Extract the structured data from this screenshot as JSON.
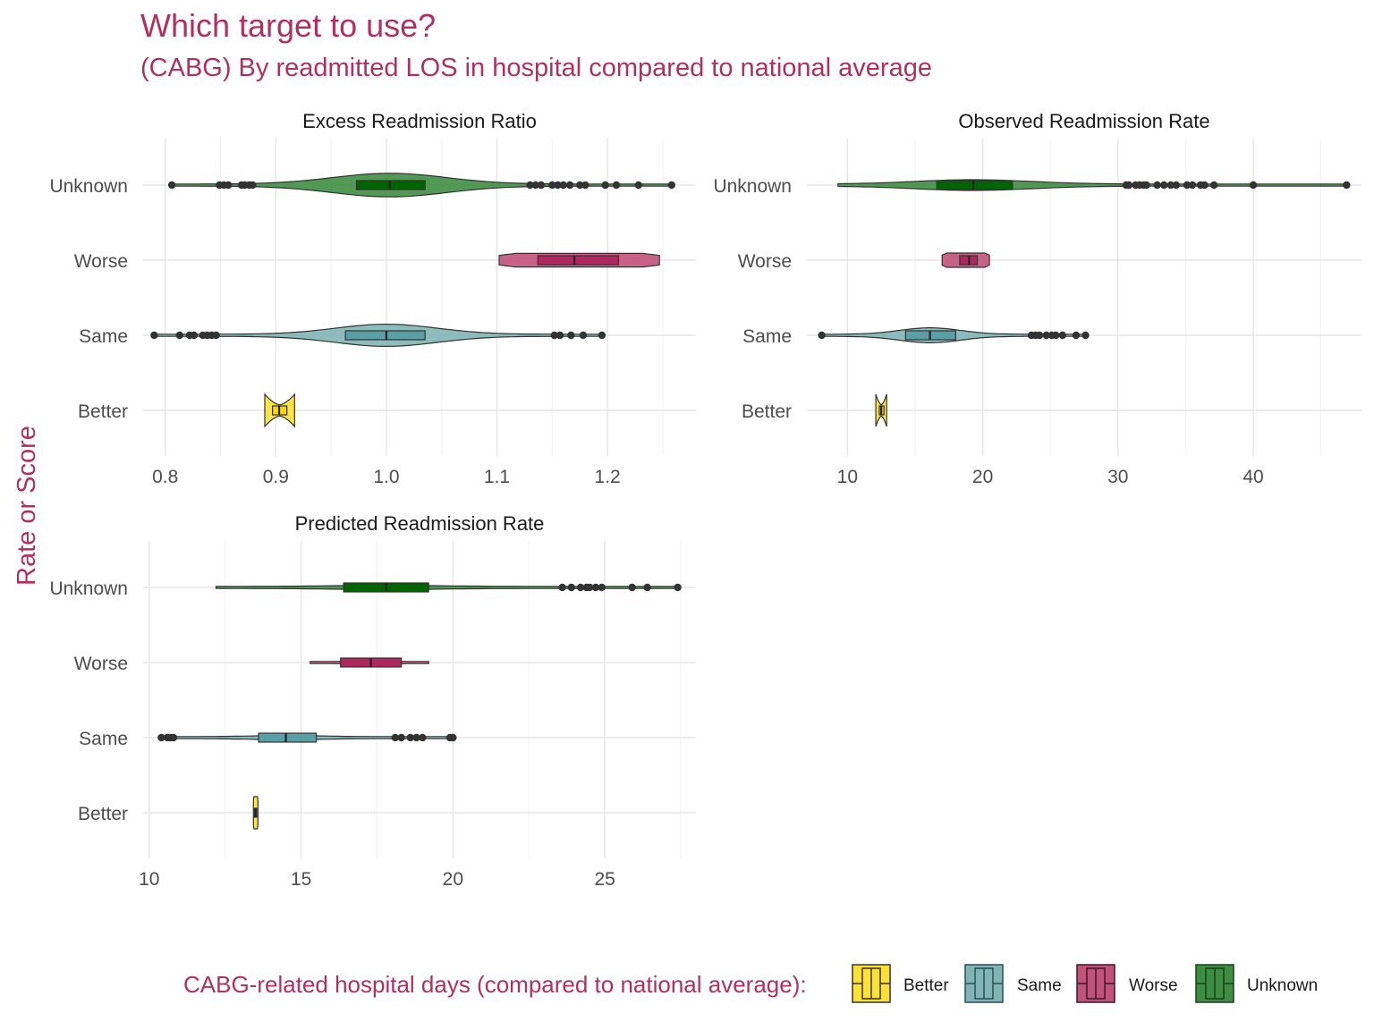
{
  "title": "Which target to use?",
  "subtitle": "(CABG) By readmitted LOS in hospital compared to national average",
  "y_axis_label": "Rate or Score",
  "legend": {
    "title": "CABG-related hospital days (compared to national average):",
    "items": [
      {
        "label": "Better",
        "fill": "#FFE135",
        "stroke": "#333333"
      },
      {
        "label": "Same",
        "fill": "#7FB5B5",
        "stroke": "#2d4f57"
      },
      {
        "label": "Worse",
        "fill": "#C2527A",
        "stroke": "#3a1a26"
      },
      {
        "label": "Unknown",
        "fill": "#3E8E41",
        "stroke": "#1e3d1e"
      }
    ]
  },
  "colors": {
    "Better": {
      "violin": "#FFE135",
      "box": "#FFD700"
    },
    "Same": {
      "violin": "#7FB5B5",
      "box": "#5A9EA6"
    },
    "Worse": {
      "violin": "#C2527A",
      "box": "#B0265E"
    },
    "Unknown": {
      "violin": "#3E8E41",
      "box": "#006400"
    }
  },
  "chart_data": [
    {
      "type": "violin-box",
      "title": "Excess Readmission Ratio",
      "categories": [
        "Unknown",
        "Worse",
        "Same",
        "Better"
      ],
      "xlim": [
        0.78,
        1.28
      ],
      "x_ticks": [
        0.8,
        0.9,
        1.0,
        1.1,
        1.2
      ],
      "x_tick_labels": [
        "0.8",
        "0.9",
        "1.0",
        "1.1",
        "1.2"
      ],
      "series": [
        {
          "name": "Unknown",
          "violin_range": [
            0.806,
            1.258
          ],
          "q1": 0.973,
          "median": 1.003,
          "q3": 1.035,
          "violin_width": 0.3,
          "width_shape": "peak",
          "outliers": [
            0.806,
            0.849,
            0.853,
            0.857,
            0.869,
            0.872,
            0.876,
            0.879,
            1.13,
            1.135,
            1.14,
            1.15,
            1.155,
            1.16,
            1.166,
            1.175,
            1.18,
            1.198,
            1.208,
            1.228,
            1.258
          ]
        },
        {
          "name": "Worse",
          "violin_range": [
            1.102,
            1.247
          ],
          "q1": 1.137,
          "median": 1.17,
          "q3": 1.21,
          "violin_width": 0.19,
          "width_shape": "flat",
          "outliers": []
        },
        {
          "name": "Same",
          "violin_range": [
            0.79,
            1.195
          ],
          "q1": 0.963,
          "median": 1.0,
          "q3": 1.035,
          "violin_width": 0.28,
          "width_shape": "peak",
          "outliers": [
            0.79,
            0.813,
            0.822,
            0.826,
            0.834,
            0.838,
            0.842,
            0.846,
            1.152,
            1.157,
            1.167,
            1.178,
            1.195
          ]
        },
        {
          "name": "Better",
          "violin_range": [
            0.89,
            0.917
          ],
          "q1": 0.897,
          "median": 0.903,
          "q3": 0.91,
          "violin_width": 0.45,
          "width_shape": "waist",
          "outliers": []
        }
      ]
    },
    {
      "type": "violin-box",
      "title": "Observed Readmission Rate",
      "categories": [
        "Unknown",
        "Worse",
        "Same",
        "Better"
      ],
      "xlim": [
        7,
        48
      ],
      "x_ticks": [
        10,
        20,
        30,
        40
      ],
      "x_tick_labels": [
        "10",
        "20",
        "30",
        "40"
      ],
      "series": [
        {
          "name": "Unknown",
          "violin_range": [
            9.3,
            46.9
          ],
          "q1": 16.6,
          "median": 19.3,
          "q3": 22.2,
          "violin_width": 0.12,
          "width_shape": "peak",
          "outliers": [
            30.6,
            30.8,
            31.3,
            31.6,
            31.9,
            32.1,
            32.9,
            33.4,
            33.9,
            34.3,
            35.1,
            35.5,
            36.1,
            36.4,
            37.1,
            40.0,
            46.9
          ]
        },
        {
          "name": "Worse",
          "violin_range": [
            17.0,
            20.5
          ],
          "q1": 18.3,
          "median": 19.0,
          "q3": 19.6,
          "violin_width": 0.2,
          "width_shape": "flat",
          "outliers": []
        },
        {
          "name": "Same",
          "violin_range": [
            8.1,
            27.7
          ],
          "q1": 14.3,
          "median": 16.1,
          "q3": 18.0,
          "violin_width": 0.18,
          "width_shape": "peak",
          "outliers": [
            8.1,
            23.6,
            23.9,
            24.2,
            24.7,
            25.1,
            25.4,
            25.9,
            26.9,
            27.6
          ]
        },
        {
          "name": "Better",
          "violin_range": [
            12.1,
            12.9
          ],
          "q1": 12.35,
          "median": 12.5,
          "q3": 12.7,
          "violin_width": 0.45,
          "width_shape": "waist",
          "outliers": []
        }
      ]
    },
    {
      "type": "violin-box",
      "title": "Predicted Readmission Rate",
      "categories": [
        "Unknown",
        "Worse",
        "Same",
        "Better"
      ],
      "xlim": [
        9.8,
        28.0
      ],
      "x_ticks": [
        10,
        15,
        20,
        25
      ],
      "x_tick_labels": [
        "10",
        "15",
        "20",
        "25"
      ],
      "series": [
        {
          "name": "Unknown",
          "violin_range": [
            12.2,
            27.4
          ],
          "q1": 16.4,
          "median": 17.8,
          "q3": 19.2,
          "violin_width": 0.03,
          "width_shape": "peak",
          "outliers": [
            23.6,
            23.9,
            24.2,
            24.4,
            24.5,
            24.7,
            24.9,
            25.9,
            26.4,
            27.4
          ]
        },
        {
          "name": "Worse",
          "violin_range": [
            15.3,
            19.2
          ],
          "q1": 16.3,
          "median": 17.3,
          "q3": 18.3,
          "violin_width": 0.04,
          "width_shape": "peak",
          "outliers": []
        },
        {
          "name": "Same",
          "violin_range": [
            10.4,
            20.0
          ],
          "q1": 13.6,
          "median": 14.5,
          "q3": 15.5,
          "violin_width": 0.03,
          "width_shape": "peak",
          "outliers": [
            10.4,
            10.6,
            10.7,
            10.8,
            18.1,
            18.3,
            18.6,
            18.8,
            19.0,
            19.9,
            20.0
          ]
        },
        {
          "name": "Better",
          "violin_range": [
            13.43,
            13.58
          ],
          "q1": 13.47,
          "median": 13.5,
          "q3": 13.54,
          "violin_width": 0.45,
          "width_shape": "flat",
          "outliers": []
        }
      ]
    }
  ]
}
